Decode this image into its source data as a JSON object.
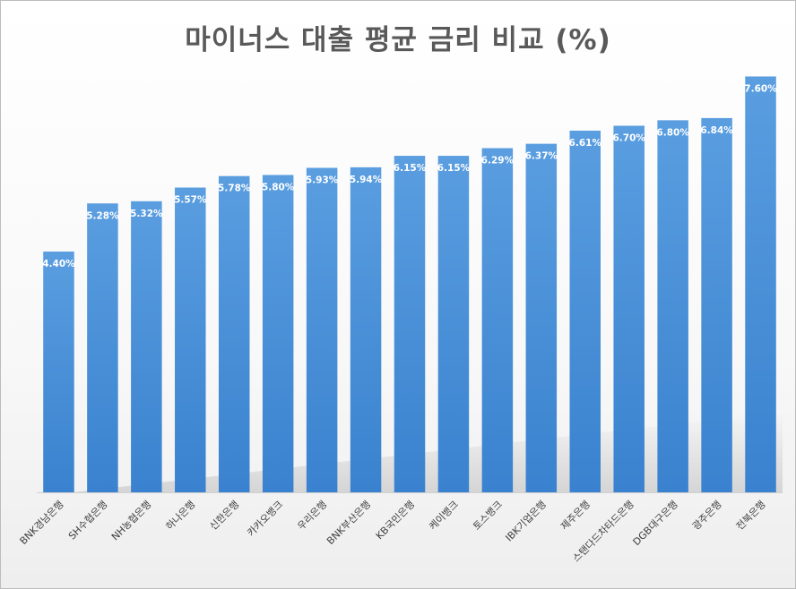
{
  "chart_data": {
    "type": "bar",
    "title": "마이너스 대출 평균 금리 비교 (%)",
    "xlabel": "",
    "ylabel": "",
    "ylim": [
      0,
      8
    ],
    "grid": false,
    "legend": "none",
    "bar_color": "#4a8fd4",
    "categories": [
      "BNK경남은행",
      "SH수협은행",
      "NH농협은행",
      "하나은행",
      "신한은행",
      "카카오뱅크",
      "우리은행",
      "BNK부산은행",
      "KB국민은행",
      "케이뱅크",
      "토스뱅크",
      "IBK기업은행",
      "제주은행",
      "스탠다드차타드은행",
      "DGB대구은행",
      "광주은행",
      "전북은행"
    ],
    "values": [
      4.4,
      5.28,
      5.32,
      5.57,
      5.78,
      5.8,
      5.93,
      5.94,
      6.15,
      6.15,
      6.29,
      6.37,
      6.61,
      6.7,
      6.8,
      6.84,
      7.6
    ],
    "value_labels": [
      "4.40%",
      "5.28%",
      "5.32%",
      "5.57%",
      "5.78%",
      "5.80%",
      "5.93%",
      "5.94%",
      "6.15%",
      "6.15%",
      "6.29%",
      "6.37%",
      "6.61%",
      "6.70%",
      "6.80%",
      "6.84%",
      "7.60%"
    ]
  }
}
